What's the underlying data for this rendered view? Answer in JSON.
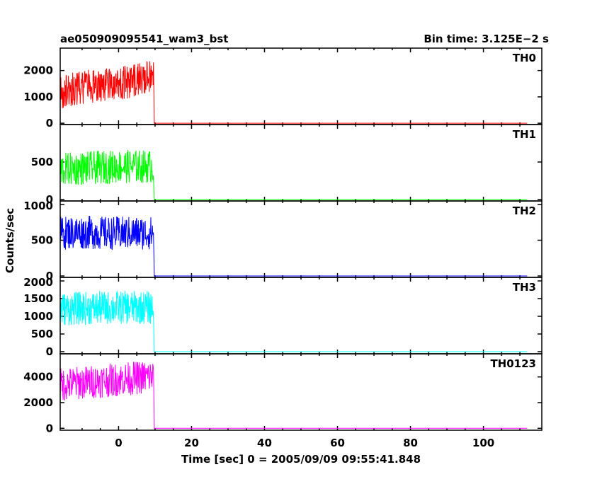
{
  "header": {
    "left_title": "ae050909095541_wam3_bst",
    "right_title": "Bin time: 3.125E−2 s"
  },
  "axes": {
    "xlabel": "Time [sec] 0 = 2005/09/09 09:55:41.848",
    "ylabel": "Counts/sec"
  },
  "chart_data": [
    {
      "type": "line",
      "name": "TH0",
      "color": "#ff0000",
      "xlim": [
        -16,
        116
      ],
      "ylim": [
        -50,
        2850
      ],
      "yticks": [
        0,
        1000,
        2000
      ],
      "yticklabels": [
        "0",
        "1000",
        "2000"
      ],
      "points": [
        [
          -16.0,
          1150
        ],
        [
          -14.0,
          1250
        ],
        [
          -12.0,
          1300
        ],
        [
          -10.0,
          1350
        ],
        [
          -8.0,
          1400
        ],
        [
          -6.0,
          1400
        ],
        [
          -4.0,
          1450
        ],
        [
          -2.0,
          1500
        ],
        [
          0.0,
          1500
        ],
        [
          2.0,
          1550
        ],
        [
          4.0,
          1600
        ],
        [
          6.0,
          1650
        ],
        [
          8.0,
          1700
        ],
        [
          9.6,
          1800
        ],
        [
          9.8,
          0
        ],
        [
          112.0,
          0
        ]
      ]
    },
    {
      "type": "line",
      "name": "TH1",
      "color": "#00ff00",
      "xlim": [
        -16,
        116
      ],
      "ylim": [
        -20,
        1000
      ],
      "yticks": [
        0,
        500
      ],
      "yticklabels": [
        "0",
        "500"
      ],
      "points": [
        [
          -16.0,
          400
        ],
        [
          -12.0,
          410
        ],
        [
          -8.0,
          420
        ],
        [
          -4.0,
          430
        ],
        [
          0.0,
          440
        ],
        [
          4.0,
          440
        ],
        [
          8.0,
          440
        ],
        [
          9.6,
          440
        ],
        [
          9.8,
          0
        ],
        [
          112.0,
          0
        ]
      ]
    },
    {
      "type": "line",
      "name": "TH2",
      "color": "#0000ff",
      "xlim": [
        -16,
        116
      ],
      "ylim": [
        -20,
        1050
      ],
      "yticks": [
        0,
        500,
        1000
      ],
      "yticklabels": [
        "0",
        "500",
        "1000"
      ],
      "points": [
        [
          -16.0,
          600
        ],
        [
          -12.0,
          610
        ],
        [
          -8.0,
          610
        ],
        [
          -4.0,
          600
        ],
        [
          0.0,
          600
        ],
        [
          4.0,
          600
        ],
        [
          8.0,
          600
        ],
        [
          9.6,
          600
        ],
        [
          9.8,
          0
        ],
        [
          112.0,
          0
        ]
      ]
    },
    {
      "type": "line",
      "name": "TH3",
      "color": "#00ffff",
      "xlim": [
        -16,
        116
      ],
      "ylim": [
        -60,
        2100
      ],
      "yticks": [
        0,
        500,
        1000,
        1500,
        2000
      ],
      "yticklabels": [
        "0",
        "500",
        "1000",
        "1500",
        "2000"
      ],
      "points": [
        [
          -16.0,
          1200
        ],
        [
          -12.0,
          1220
        ],
        [
          -8.0,
          1230
        ],
        [
          -4.0,
          1240
        ],
        [
          0.0,
          1250
        ],
        [
          4.0,
          1250
        ],
        [
          8.0,
          1250
        ],
        [
          9.6,
          1250
        ],
        [
          9.8,
          0
        ],
        [
          112.0,
          0
        ]
      ]
    },
    {
      "type": "line",
      "name": "TH0123",
      "color": "#ff00ff",
      "xlim": [
        -16,
        116
      ],
      "ylim": [
        -150,
        5800
      ],
      "yticks": [
        0,
        2000,
        4000
      ],
      "yticklabels": [
        "0",
        "2000",
        "4000"
      ],
      "xticks": [
        0,
        20,
        40,
        60,
        80,
        100
      ],
      "xticklabels": [
        "0",
        "20",
        "40",
        "60",
        "80",
        "100"
      ],
      "points": [
        [
          -16.0,
          3400
        ],
        [
          -12.0,
          3500
        ],
        [
          -8.0,
          3600
        ],
        [
          -4.0,
          3700
        ],
        [
          0.0,
          3800
        ],
        [
          4.0,
          3900
        ],
        [
          8.0,
          4000
        ],
        [
          9.6,
          4100
        ],
        [
          9.8,
          0
        ],
        [
          112.0,
          0
        ]
      ]
    }
  ]
}
